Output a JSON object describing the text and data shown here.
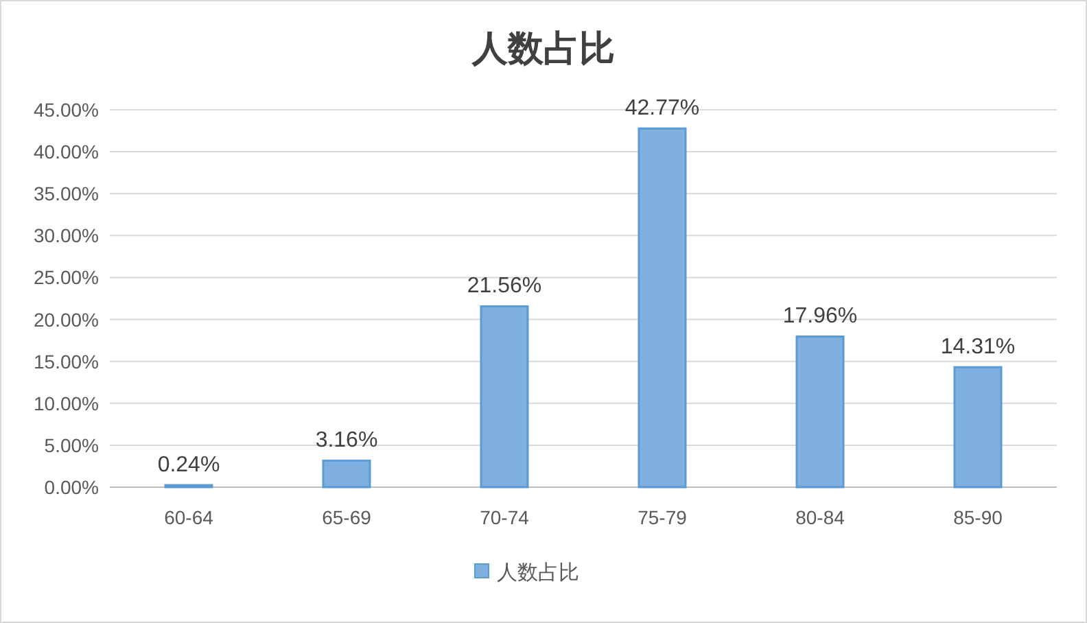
{
  "chart_data": {
    "type": "bar",
    "title": "人数占比",
    "categories": [
      "60-64",
      "65-69",
      "70-74",
      "75-79",
      "80-84",
      "85-90"
    ],
    "series": [
      {
        "name": "人数占比",
        "color": "#7fb0e0",
        "values": [
          0.24,
          3.16,
          21.56,
          42.77,
          17.96,
          14.31
        ],
        "value_labels": [
          "0.24%",
          "3.16%",
          "21.56%",
          "42.77%",
          "17.96%",
          "14.31%"
        ]
      }
    ],
    "ylim": [
      0,
      45
    ],
    "yticks": [
      {
        "value": 0,
        "label": "0.00%"
      },
      {
        "value": 5,
        "label": "5.00%"
      },
      {
        "value": 10,
        "label": "10.00%"
      },
      {
        "value": 15,
        "label": "15.00%"
      },
      {
        "value": 20,
        "label": "20.00%"
      },
      {
        "value": 25,
        "label": "25.00%"
      },
      {
        "value": 30,
        "label": "30.00%"
      },
      {
        "value": 35,
        "label": "35.00%"
      },
      {
        "value": 40,
        "label": "40.00%"
      },
      {
        "value": 45,
        "label": "45.00%"
      }
    ],
    "grid": "y",
    "legend": "bottom"
  }
}
